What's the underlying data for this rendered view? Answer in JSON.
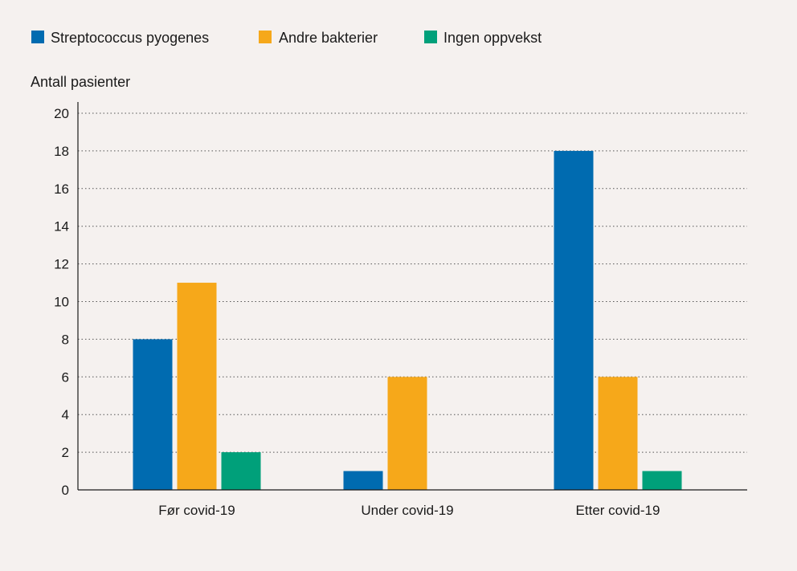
{
  "chart_data": {
    "type": "bar",
    "ylabel": "Antall pasienter",
    "xlabel": "",
    "ylim": [
      0,
      20
    ],
    "yticks": [
      0,
      2,
      4,
      6,
      8,
      10,
      12,
      14,
      16,
      18,
      20
    ],
    "categories": [
      "Før covid-19",
      "Under covid-19",
      "Etter covid-19"
    ],
    "series": [
      {
        "name": "Streptococcus pyogenes",
        "color": "#006bb0",
        "values": [
          8,
          1,
          18
        ]
      },
      {
        "name": "Andre bakterier",
        "color": "#f6a81a",
        "values": [
          11,
          6,
          6
        ]
      },
      {
        "name": "Ingen oppvekst",
        "color": "#00a07a",
        "values": [
          2,
          0,
          1
        ]
      }
    ],
    "grid": "dotted-horizontal",
    "legend": "top-left"
  }
}
